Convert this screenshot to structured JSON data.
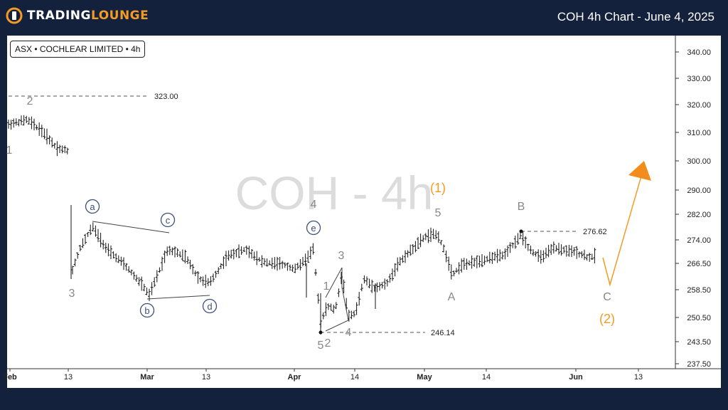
{
  "brand": {
    "name_left": "TRADING",
    "name_right": "LOUNGE"
  },
  "header": {
    "title": "COH 4h Chart - June 4, 2025"
  },
  "symbol": {
    "label": "ASX • COCHLEAR LIMITED • 4h"
  },
  "watermark": "COH - 4h",
  "colors": {
    "background": "#14213d",
    "accent": "#f59a23",
    "wave_grey": "#888888",
    "circle_blue": "#3a4f7a"
  },
  "price_levels": [
    {
      "name": "high-2",
      "value": "323.00"
    },
    {
      "name": "high-b",
      "value": "276.62"
    },
    {
      "name": "low-5",
      "value": "246.14"
    }
  ],
  "chart_data": {
    "type": "ohlc-bars",
    "timeframe": "4h",
    "y_ticks": [
      "340.00",
      "330.00",
      "320.00",
      "310.00",
      "300.00",
      "290.00",
      "282.00",
      "274.00",
      "266.50",
      "258.50",
      "250.50",
      "243.50",
      "237.50"
    ],
    "x_ticks": [
      "Feb",
      "13",
      "Mar",
      "13",
      "Apr",
      "14",
      "May",
      "14",
      "Jun",
      "13"
    ],
    "wave_labels": {
      "grey": [
        "2",
        "1",
        "3",
        "4",
        "5",
        "2",
        "1",
        "3",
        "4",
        "5",
        "A",
        "B",
        "C"
      ],
      "circled": [
        "a",
        "b",
        "c",
        "d",
        "e"
      ],
      "orange": [
        "(1)",
        "(2)"
      ]
    },
    "key_points": [
      {
        "date": "Feb (early)",
        "value": 323.0,
        "label": "2"
      },
      {
        "date": "Apr 8",
        "value": 246.14,
        "label": "5"
      },
      {
        "date": "May 5",
        "value": 278.5,
        "label": "(1)/5"
      },
      {
        "date": "May 21",
        "value": 276.62,
        "label": "B"
      },
      {
        "date": "Jun 6",
        "value": 260.0,
        "label": "C/(2)"
      },
      {
        "date": "Jun 15",
        "value": 294.0,
        "label": "arrow target"
      }
    ]
  }
}
